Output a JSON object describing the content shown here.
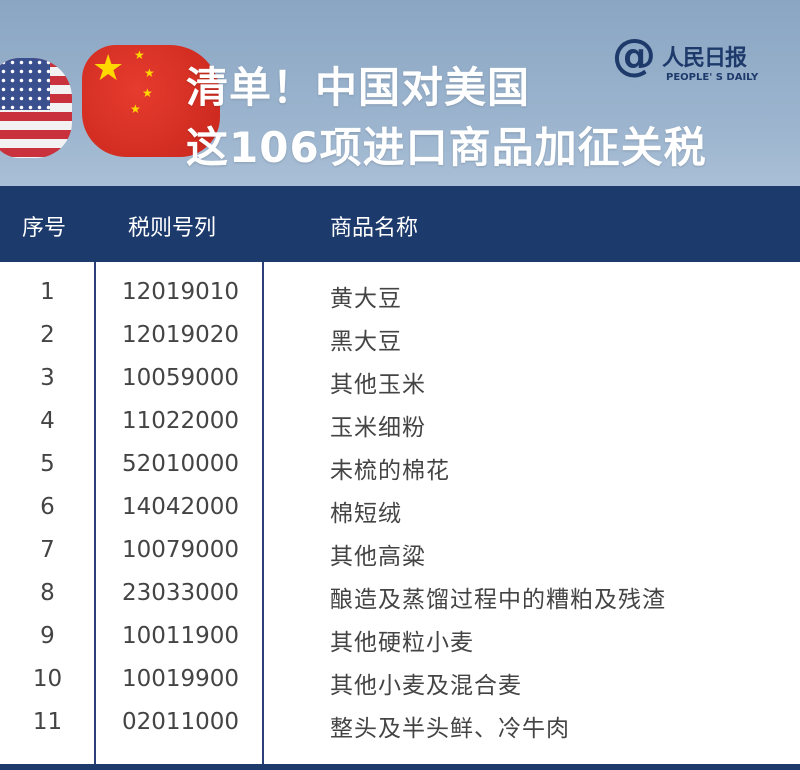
{
  "banner": {
    "title_line1": "清单！中国对美国",
    "title_line2": "这106项进口商品加征关税",
    "logo": {
      "mark": "@",
      "name_cn": "人民日报",
      "name_en": "PEOPLE' S DAILY"
    }
  },
  "table": {
    "headers": [
      "序号",
      "税则号列",
      "商品名称"
    ],
    "rows": [
      [
        "1",
        "12019010",
        "黄大豆"
      ],
      [
        "2",
        "12019020",
        "黑大豆"
      ],
      [
        "3",
        "10059000",
        "其他玉米"
      ],
      [
        "4",
        "11022000",
        "玉米细粉"
      ],
      [
        "5",
        "52010000",
        "未梳的棉花"
      ],
      [
        "6",
        "14042000",
        "棉短绒"
      ],
      [
        "7",
        "10079000",
        "其他高粱"
      ],
      [
        "8",
        "23033000",
        "酿造及蒸馏过程中的糟粕及残渣"
      ],
      [
        "9",
        "10011900",
        "其他硬粒小麦"
      ],
      [
        "10",
        "10019900",
        "其他小麦及混合麦"
      ],
      [
        "11",
        "02011000",
        "整头及半头鲜、冷牛肉"
      ]
    ]
  },
  "colors": {
    "header_bg": "#1c3a6c",
    "banner_bg": "#9db5cf",
    "text": "#444444"
  }
}
